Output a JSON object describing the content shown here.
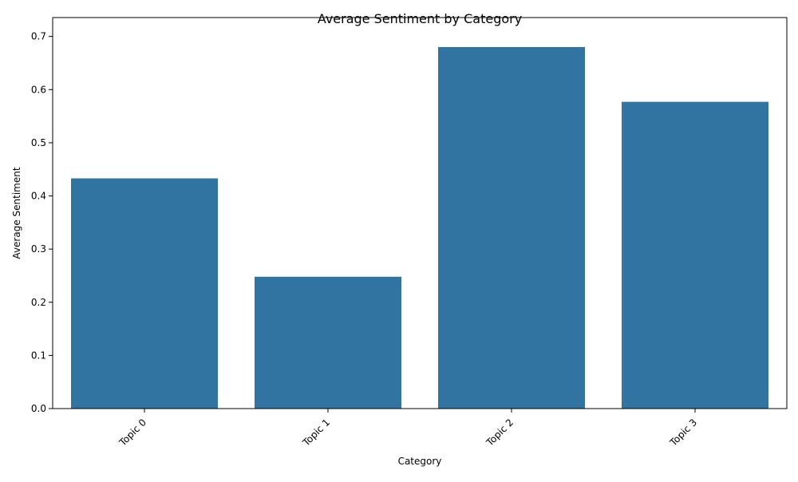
{
  "chart_data": {
    "type": "bar",
    "title": "Average Sentiment by Category",
    "xlabel": "Category",
    "ylabel": "Average Sentiment",
    "categories": [
      "Topic 0",
      "Topic 1",
      "Topic 2",
      "Topic 3"
    ],
    "values": [
      0.433,
      0.248,
      0.68,
      0.577
    ],
    "ylim": [
      0,
      0.7
    ],
    "yticks": [
      "0.0",
      "0.1",
      "0.2",
      "0.3",
      "0.4",
      "0.5",
      "0.6",
      "0.7"
    ],
    "bar_color": "#3274a1",
    "grid": false,
    "legend": "none",
    "xtick_rotation": "45 degrees"
  }
}
